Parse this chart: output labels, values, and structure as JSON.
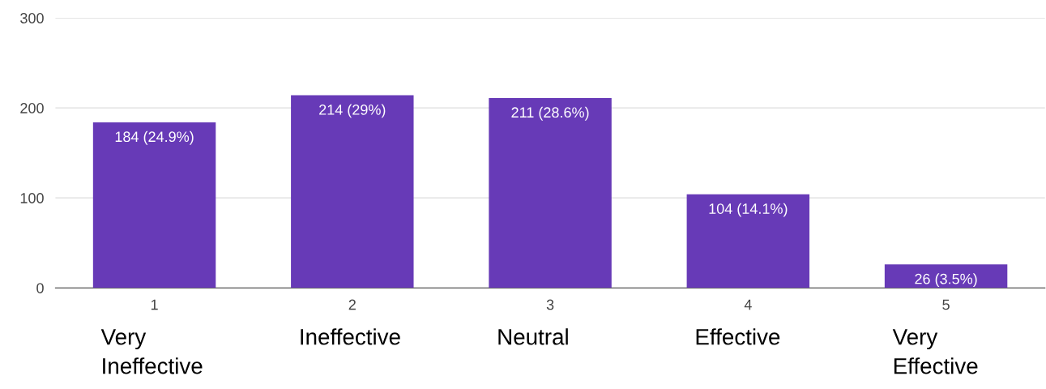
{
  "chart_data": {
    "type": "bar",
    "categories": [
      "1",
      "2",
      "3",
      "4",
      "5"
    ],
    "values": [
      184,
      214,
      211,
      104,
      26
    ],
    "value_labels": [
      "184 (24.9%)",
      "214 (29%)",
      "211 (28.6%)",
      "104 (14.1%)",
      "26 (3.5%)"
    ],
    "color": "#673ab7",
    "ylim": [
      0,
      300
    ],
    "yticks": [
      0,
      100,
      200,
      300
    ],
    "grid": "y",
    "annotations": [
      "Very\nIneffective",
      "Ineffective",
      "Neutral",
      "Effective",
      "Very\nEffective"
    ]
  }
}
